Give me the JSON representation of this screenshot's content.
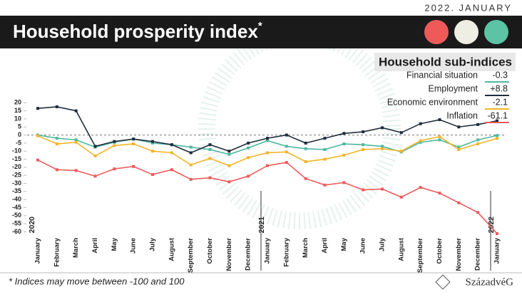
{
  "date": "2022. JANUARY",
  "chart_data": {
    "type": "line",
    "title": "Household prosperity index",
    "title_mark": "*",
    "legend_title": "Household sub-indices",
    "categories": [
      "January",
      "February",
      "March",
      "April",
      "May",
      "June",
      "July",
      "August",
      "September",
      "October",
      "November",
      "December",
      "January",
      "February",
      "March",
      "April",
      "May",
      "June",
      "July",
      "August",
      "September",
      "October",
      "November",
      "December",
      "January"
    ],
    "years": [
      {
        "label": "2020",
        "index": 0
      },
      {
        "label": "2021",
        "index": 12
      },
      {
        "label": "2022",
        "index": 24
      }
    ],
    "series": [
      {
        "name": "Financial situation",
        "latest_label": "-0.3",
        "color": "#4fb8a0",
        "values": [
          0,
          -2,
          -3,
          -7.5,
          -4.5,
          -2.5,
          -5,
          -6,
          -7.5,
          -9,
          -12,
          -8,
          -3.5,
          -7,
          -8.5,
          -9,
          -5.5,
          -6,
          -7,
          -10.5,
          -4.5,
          -3,
          -7.5,
          -3,
          -0.3
        ]
      },
      {
        "name": "Employment",
        "latest_label": "+8.8",
        "color": "#1f2d3d",
        "values": [
          16.5,
          17.5,
          15,
          -7,
          -4,
          -2.5,
          -4,
          -6,
          -11,
          -6,
          -10,
          -5,
          -2,
          0,
          -5,
          -2,
          1,
          2,
          4.5,
          1.5,
          7,
          9.5,
          5,
          6.5,
          8.8
        ]
      },
      {
        "name": "Economic environment",
        "latest_label": "-2.1",
        "color": "#f2b52a",
        "values": [
          -0.5,
          -5.5,
          -4.5,
          -13,
          -6.5,
          -5.5,
          -10,
          -11,
          -18.5,
          -14.5,
          -19,
          -14,
          -11,
          -10.5,
          -16.5,
          -15,
          -12.5,
          -9,
          -8.5,
          -10,
          -3.5,
          -1,
          -9,
          -5.5,
          -2.1
        ]
      },
      {
        "name": "Inflation",
        "latest_label": "-61.1",
        "color": "#ee5a5a",
        "values": [
          -15.5,
          -21.5,
          -22,
          -25.5,
          -21,
          -19.5,
          -24.5,
          -21.5,
          -27.5,
          -26.5,
          -29,
          -25.5,
          -19,
          -17,
          -27,
          -31,
          -29.5,
          -34,
          -33.5,
          -38.5,
          -32.5,
          -36,
          -42,
          -48,
          -61.1
        ]
      }
    ],
    "ylim": [
      -62,
      21
    ],
    "yticks": [
      20,
      15,
      10,
      5,
      0,
      -5,
      -10,
      -15,
      -20,
      -25,
      -30,
      -35,
      -40,
      -45,
      -50,
      -55,
      -60
    ],
    "grid": false,
    "footnote": "* Indices may move between -100 and 100",
    "source": "SzázadvéG"
  }
}
